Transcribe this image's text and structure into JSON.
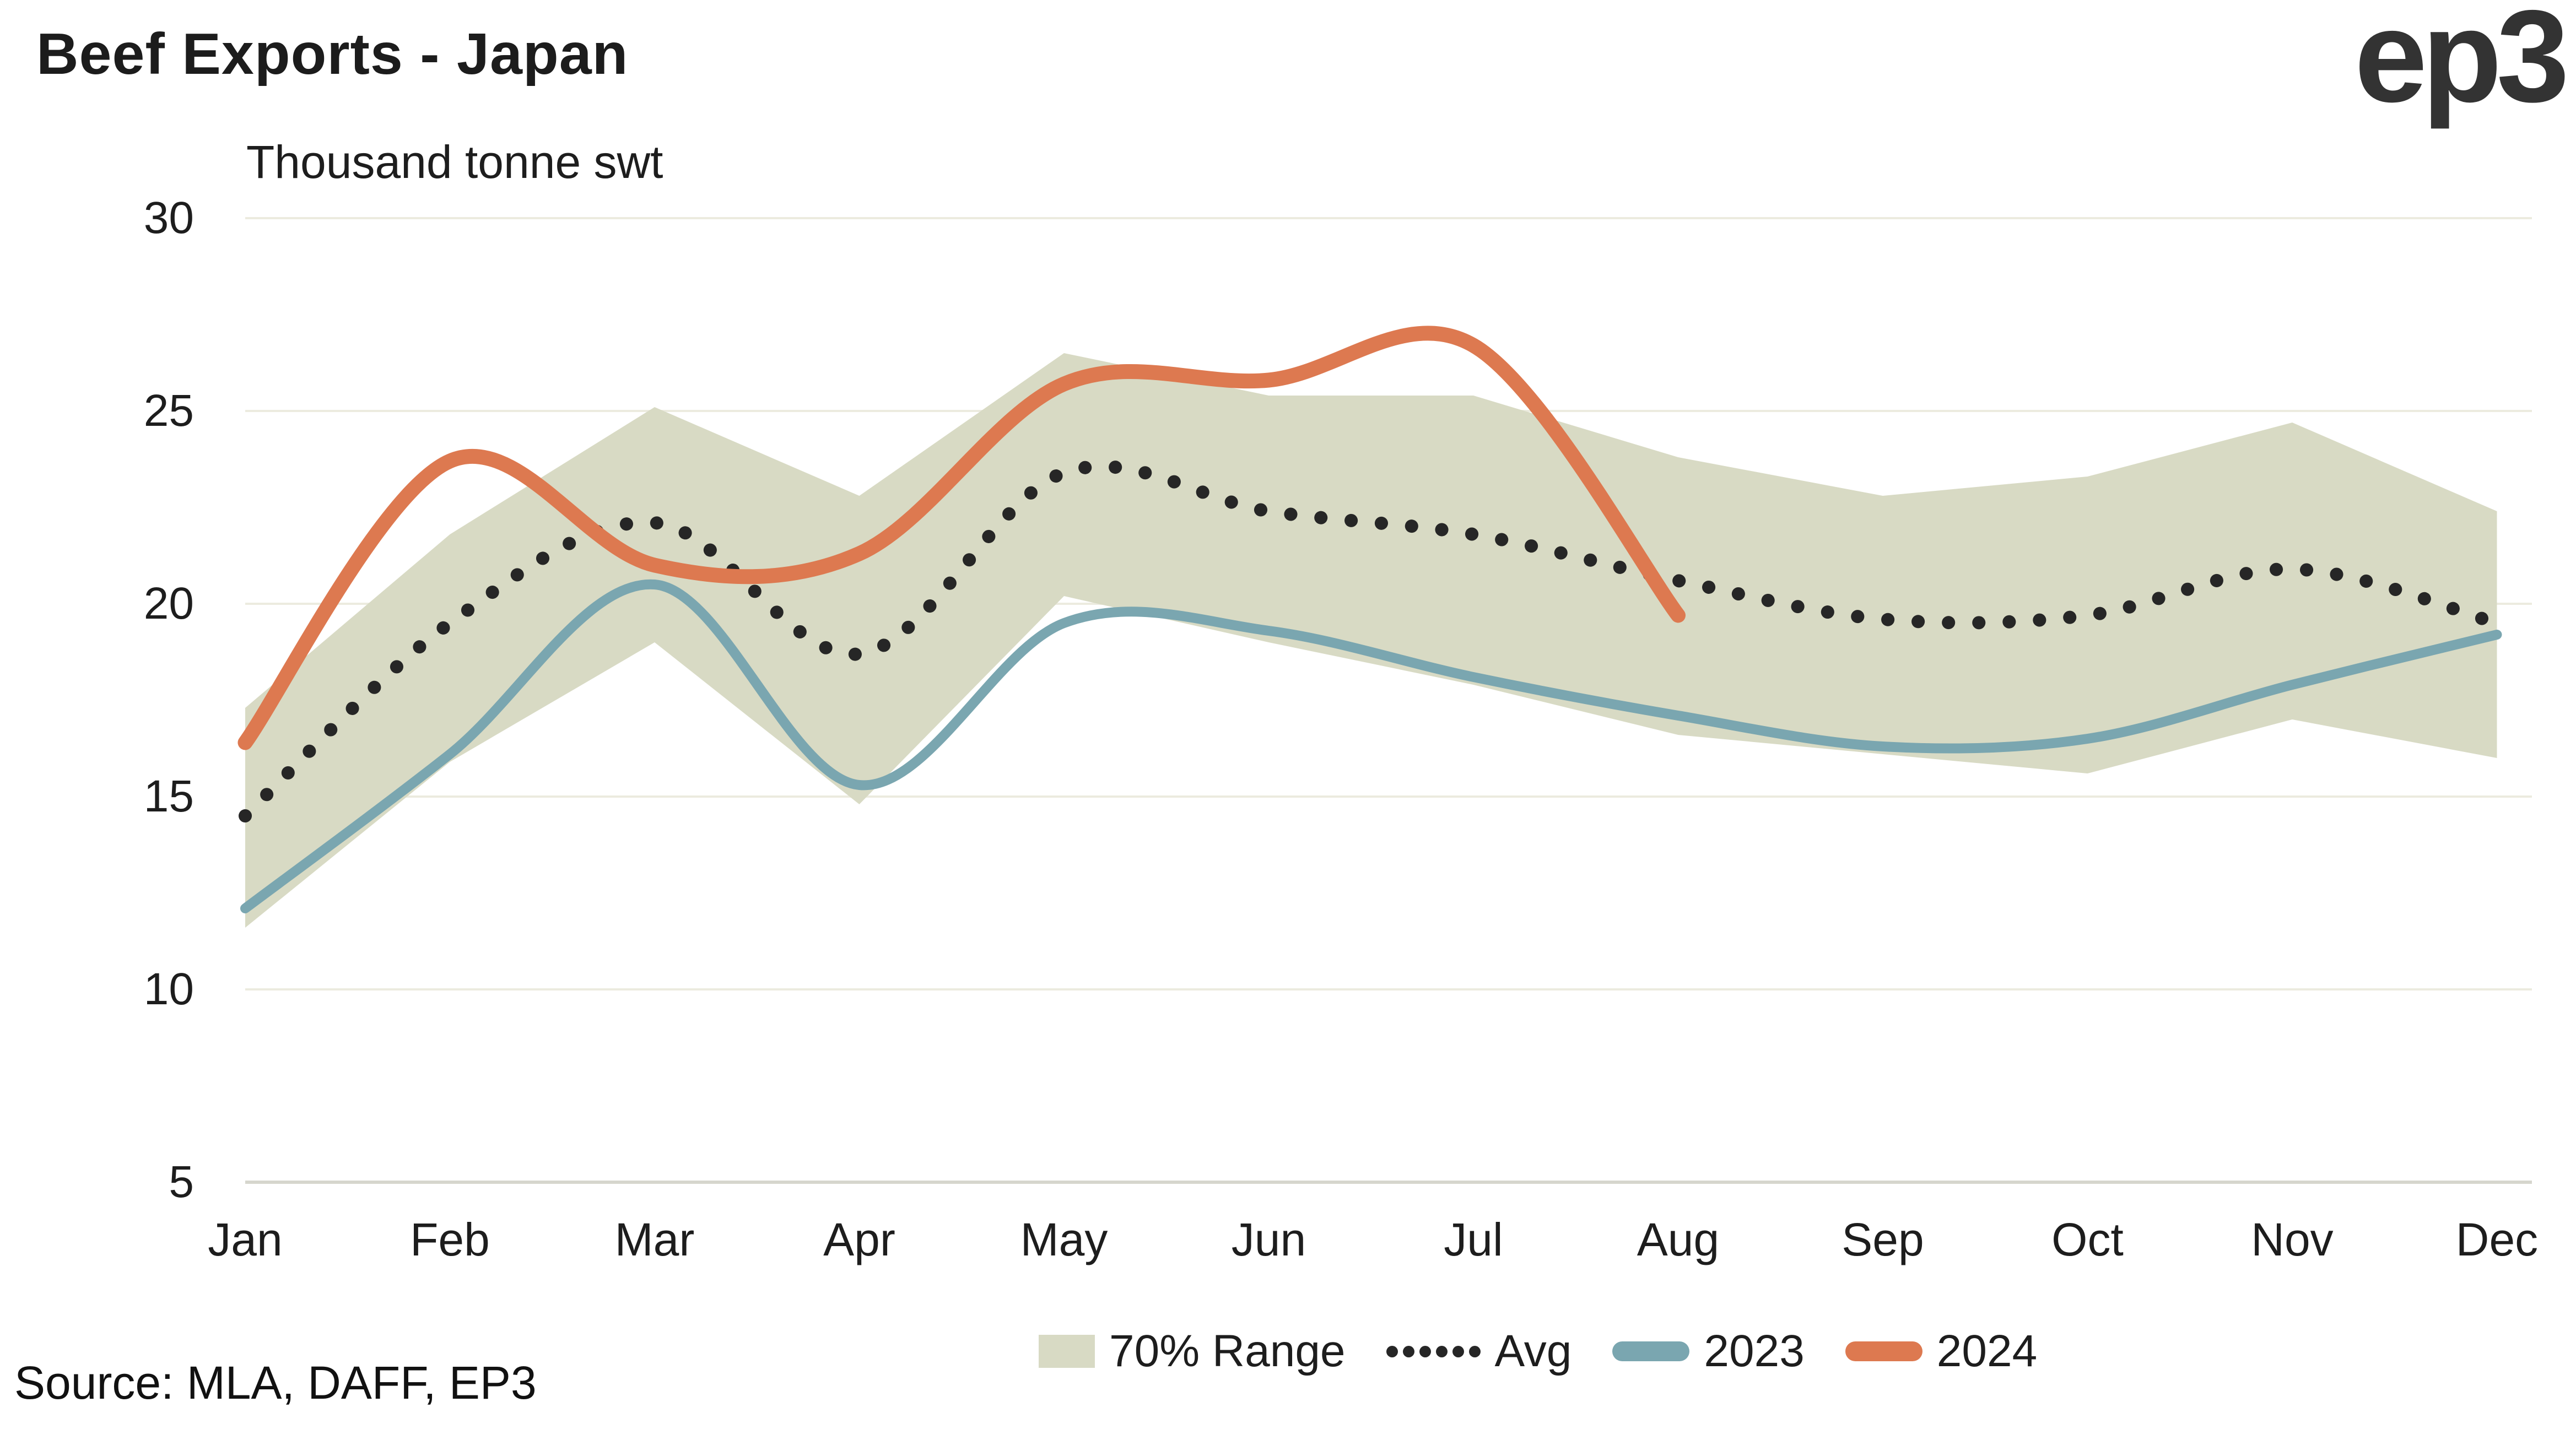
{
  "header": {
    "title": "Beef Exports - Japan",
    "subtitle": "Thousand tonne swt",
    "logo": "ep3"
  },
  "source": "Source: MLA, DAFF, EP3",
  "colors": {
    "background": "#ffffff",
    "band": "#d8dac4",
    "avg": "#262626",
    "y2023": "#7aa6b0",
    "y2024": "#dd7950",
    "gridline": "#ecebdf",
    "baseline": "#d6d6cd",
    "text": "#1d1d1d",
    "logo": "#333333"
  },
  "legend": [
    {
      "id": "range",
      "type": "box",
      "label": "70% Range"
    },
    {
      "id": "avg",
      "type": "dots",
      "label": "Avg"
    },
    {
      "id": "y2023",
      "type": "line",
      "label": "2023"
    },
    {
      "id": "y2024",
      "type": "line",
      "label": "2024"
    }
  ],
  "chart_data": {
    "type": "line",
    "title": "Beef Exports - Japan",
    "ylabel": "Thousand tonne swt",
    "xlabel": "",
    "ylim": [
      5,
      30
    ],
    "yticks": [
      30,
      25,
      20,
      15,
      10,
      5
    ],
    "grid": "horizontal",
    "legend_position": "bottom",
    "categories": [
      "Jan",
      "Feb",
      "Mar",
      "Apr",
      "May",
      "Jun",
      "Jul",
      "Aug",
      "Sep",
      "Oct",
      "Nov",
      "Dec"
    ],
    "series": [
      {
        "name": "70% Range",
        "type": "band",
        "low": [
          11.6,
          15.9,
          19.0,
          14.8,
          20.2,
          19.0,
          17.9,
          16.6,
          16.1,
          15.6,
          17.0,
          16.0
        ],
        "high": [
          17.3,
          21.8,
          25.1,
          22.8,
          26.5,
          25.4,
          25.4,
          23.8,
          22.8,
          23.3,
          24.7,
          22.4
        ]
      },
      {
        "name": "Avg",
        "type": "dotted-line",
        "values": [
          14.5,
          19.5,
          22.1,
          18.7,
          23.4,
          22.4,
          21.8,
          20.6,
          19.6,
          19.7,
          20.9,
          19.5
        ]
      },
      {
        "name": "2023",
        "type": "line",
        "values": [
          12.1,
          16.1,
          20.5,
          15.3,
          19.5,
          19.3,
          18.1,
          17.1,
          16.3,
          16.5,
          17.9,
          19.2
        ]
      },
      {
        "name": "2024",
        "type": "line",
        "values": [
          16.4,
          23.7,
          21.0,
          21.3,
          25.7,
          25.8,
          26.7,
          19.7,
          null,
          null,
          null,
          null
        ]
      }
    ]
  }
}
